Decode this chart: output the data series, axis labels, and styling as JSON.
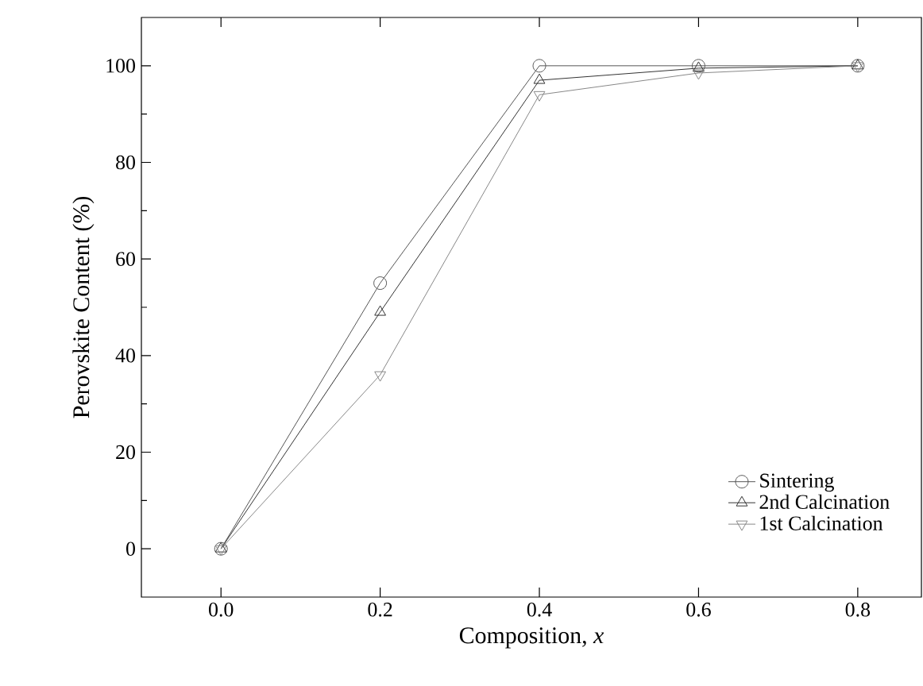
{
  "chart_data": {
    "type": "line",
    "xlabel": "Composition, *x*",
    "ylabel": "Perovskite Content (%)",
    "x": [
      0.0,
      0.2,
      0.4,
      0.6,
      0.8
    ],
    "series": [
      {
        "name": "Sintering",
        "color": "#555555",
        "marker": "circle",
        "values": [
          0,
          55,
          100,
          100,
          100
        ]
      },
      {
        "name": "2nd Calcination",
        "color": "#333333",
        "marker": "triangle",
        "values": [
          0,
          49,
          97,
          99.5,
          100
        ]
      },
      {
        "name": "1st Calcination",
        "color": "#888888",
        "marker": "triangle down",
        "values": [
          0,
          36,
          94,
          98.5,
          100
        ]
      }
    ],
    "xlim": [
      -0.1,
      0.88
    ],
    "ylim": [
      -10,
      110
    ],
    "xticks": [
      {
        "value": 0.0,
        "label": "0.0"
      },
      0.2,
      0.4,
      0.6,
      0.8
    ],
    "yticks": [
      0,
      20,
      40,
      60,
      80,
      100
    ],
    "grid": false,
    "legend": "bottom right",
    "line_style": "solid"
  }
}
